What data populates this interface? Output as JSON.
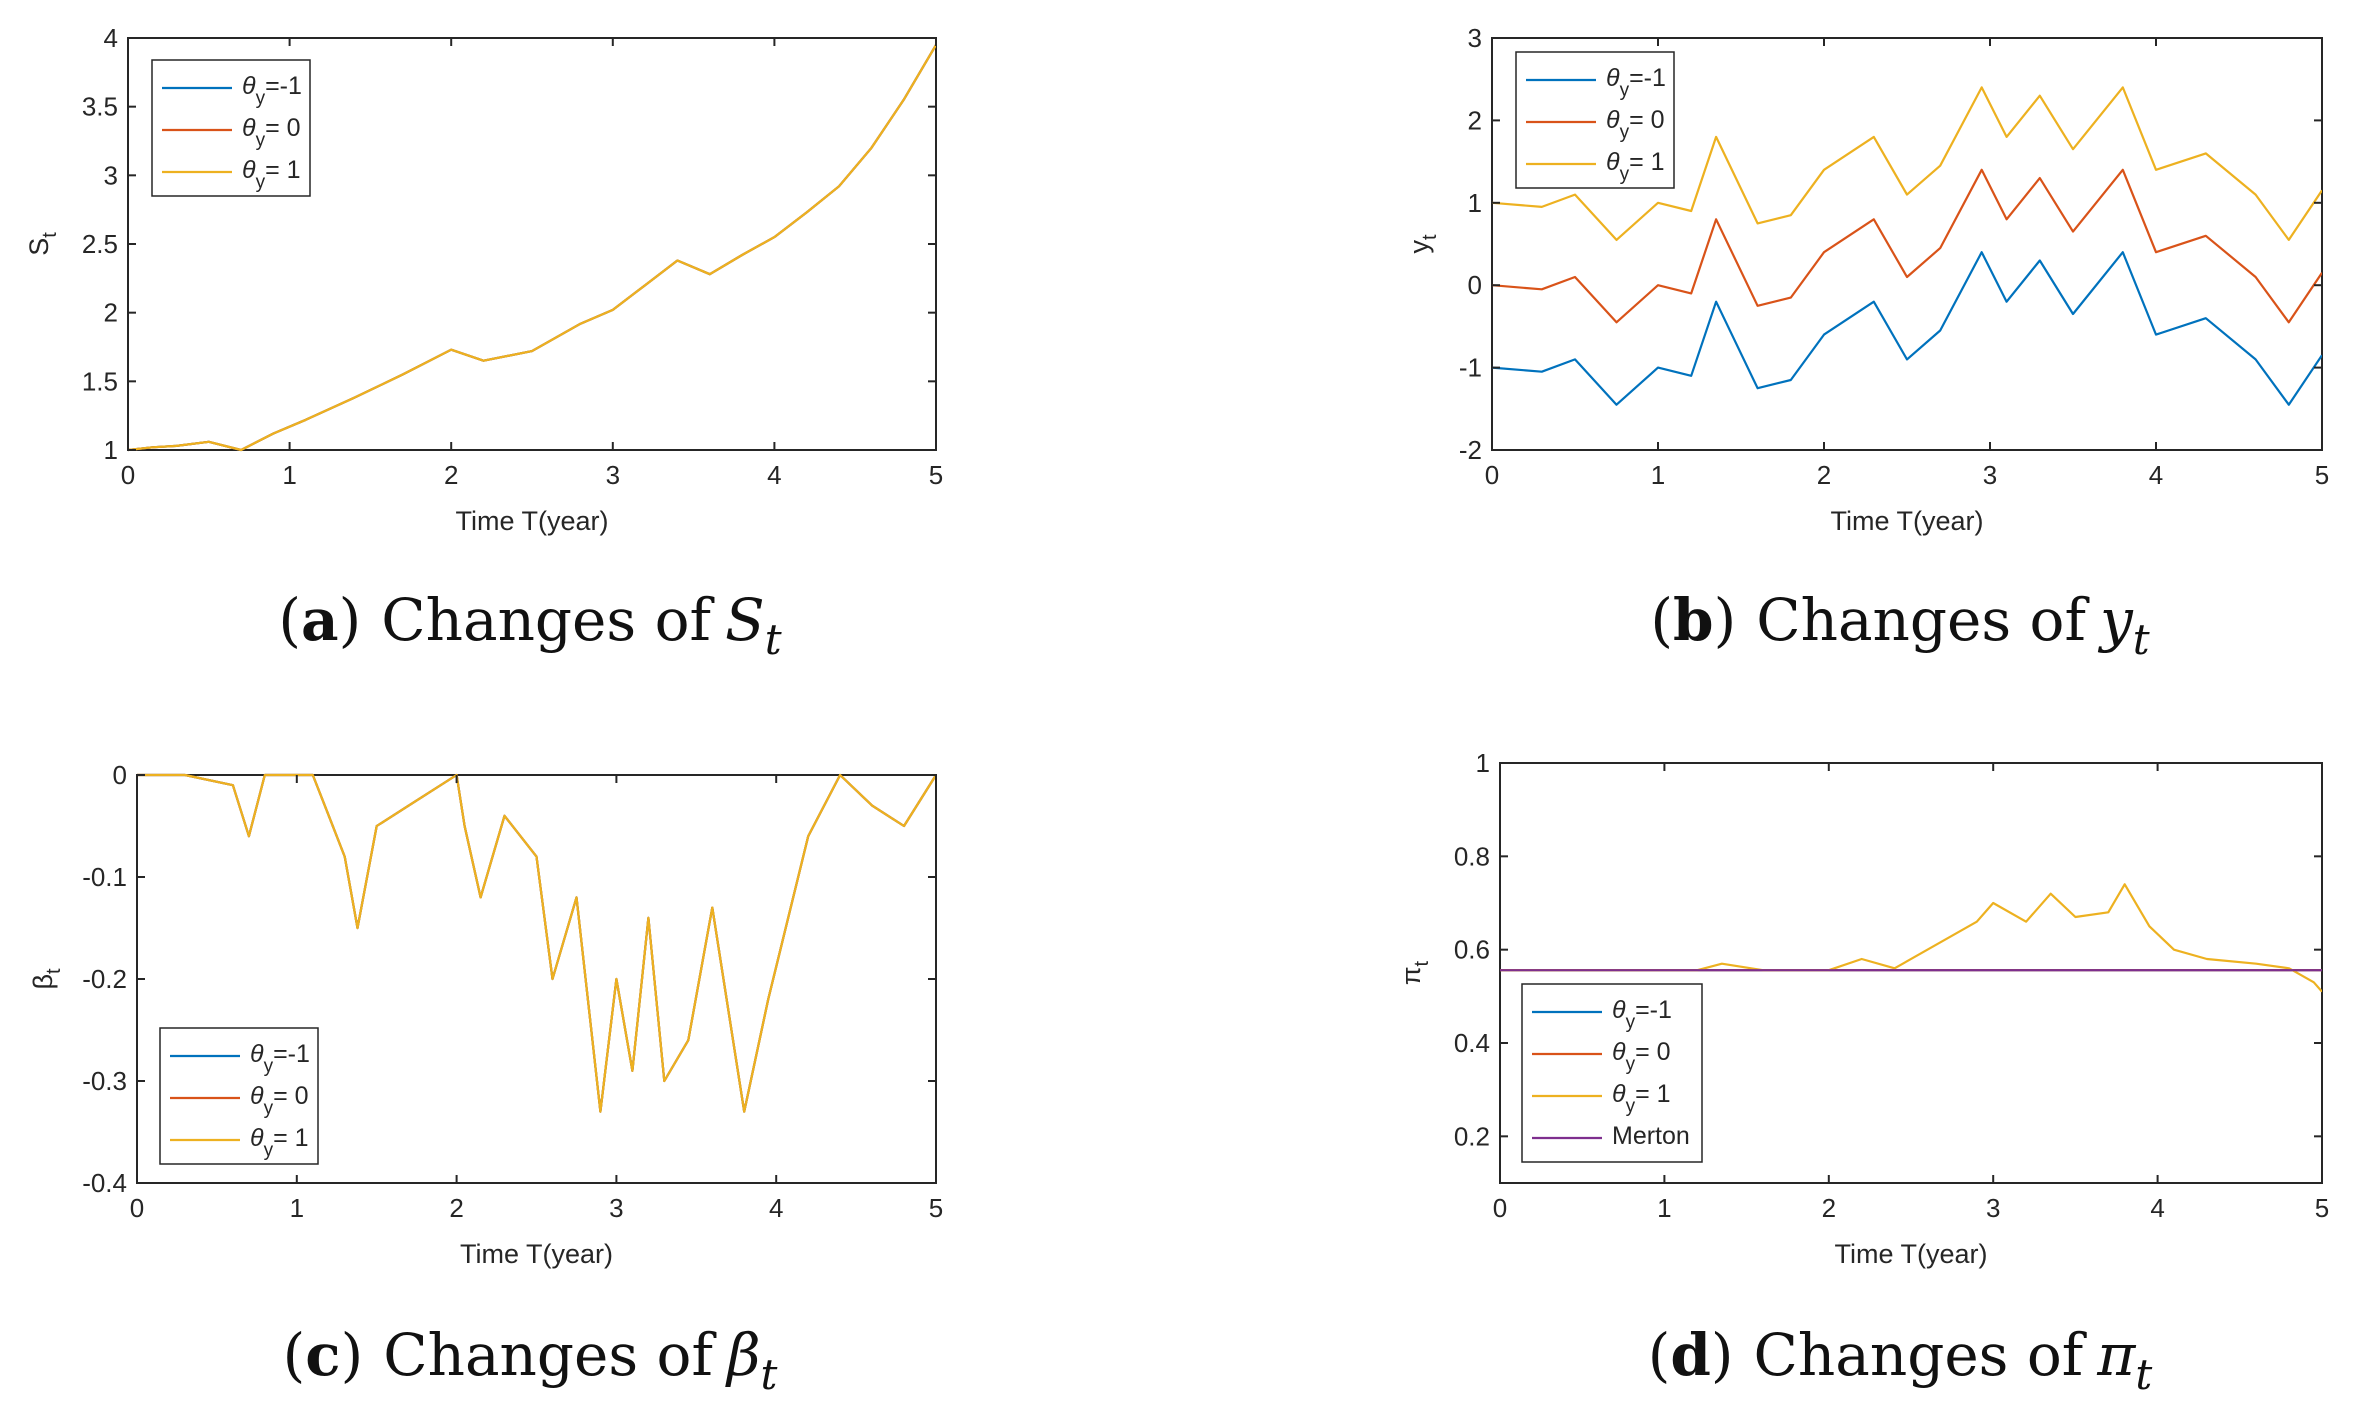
{
  "colors": {
    "blue": "#0072BD",
    "orange": "#D95319",
    "yellow": "#EDB120",
    "purple": "#7E2F8E",
    "axis": "#262626"
  },
  "chart_data": [
    {
      "id": "a",
      "type": "line",
      "caption": {
        "paren_open": "(",
        "letter": "a",
        "paren_close": ")",
        "text": "Changes of",
        "var": "S",
        "sub": "t"
      },
      "xlabel": "Time T(year)",
      "ylabel": {
        "main": "S",
        "sub": "t"
      },
      "xlim": [
        0,
        5
      ],
      "ylim": [
        1,
        4
      ],
      "xticks": [
        "0",
        "1",
        "2",
        "3",
        "4",
        "5"
      ],
      "yticks": [
        "1",
        "1.5",
        "2",
        "2.5",
        "3",
        "3.5",
        "4"
      ],
      "legend": [
        {
          "sym": "θ",
          "sub": "y",
          "val": "=-1",
          "color": "#0072BD"
        },
        {
          "sym": "θ",
          "sub": "y",
          "val": "= 0",
          "color": "#D95319"
        },
        {
          "sym": "θ",
          "sub": "y",
          "val": "= 1",
          "color": "#EDB120"
        }
      ],
      "series": [
        {
          "name": "θy=-1",
          "color": "#0072BD",
          "x": [
            0,
            0.15,
            0.3,
            0.5,
            0.7,
            0.9,
            1.1,
            1.4,
            1.7,
            2.0,
            2.2,
            2.5,
            2.8,
            3.0,
            3.2,
            3.4,
            3.6,
            3.8,
            4.0,
            4.2,
            4.4,
            4.6,
            4.8,
            5.0
          ],
          "y": [
            1.0,
            1.02,
            1.03,
            1.06,
            1.0,
            1.12,
            1.22,
            1.38,
            1.55,
            1.73,
            1.65,
            1.72,
            1.92,
            2.02,
            2.2,
            2.38,
            2.28,
            2.42,
            2.55,
            2.73,
            2.92,
            3.2,
            3.55,
            3.95
          ]
        },
        {
          "name": "θy=0",
          "color": "#D95319",
          "x": [
            0,
            0.15,
            0.3,
            0.5,
            0.7,
            0.9,
            1.1,
            1.4,
            1.7,
            2.0,
            2.2,
            2.5,
            2.8,
            3.0,
            3.2,
            3.4,
            3.6,
            3.8,
            4.0,
            4.2,
            4.4,
            4.6,
            4.8,
            5.0
          ],
          "y": [
            1.0,
            1.02,
            1.03,
            1.06,
            1.0,
            1.12,
            1.22,
            1.38,
            1.55,
            1.73,
            1.65,
            1.72,
            1.92,
            2.02,
            2.2,
            2.38,
            2.28,
            2.42,
            2.55,
            2.73,
            2.92,
            3.2,
            3.55,
            3.95
          ]
        },
        {
          "name": "θy=1",
          "color": "#EDB120",
          "x": [
            0,
            0.15,
            0.3,
            0.5,
            0.7,
            0.9,
            1.1,
            1.4,
            1.7,
            2.0,
            2.2,
            2.5,
            2.8,
            3.0,
            3.2,
            3.4,
            3.6,
            3.8,
            4.0,
            4.2,
            4.4,
            4.6,
            4.8,
            5.0
          ],
          "y": [
            1.0,
            1.02,
            1.03,
            1.06,
            1.0,
            1.12,
            1.22,
            1.38,
            1.55,
            1.73,
            1.65,
            1.72,
            1.92,
            2.02,
            2.2,
            2.38,
            2.28,
            2.42,
            2.55,
            2.73,
            2.92,
            3.2,
            3.55,
            3.95
          ]
        }
      ]
    },
    {
      "id": "b",
      "type": "line",
      "caption": {
        "paren_open": "(",
        "letter": "b",
        "paren_close": ")",
        "text": "Changes of",
        "var": "y",
        "sub": "t"
      },
      "xlabel": "Time T(year)",
      "ylabel": {
        "main": "y",
        "sub": "t"
      },
      "xlim": [
        0,
        5
      ],
      "ylim": [
        -2,
        3
      ],
      "xticks": [
        "0",
        "1",
        "2",
        "3",
        "4",
        "5"
      ],
      "yticks": [
        "-2",
        "-1",
        "0",
        "1",
        "2",
        "3"
      ],
      "legend": [
        {
          "sym": "θ",
          "sub": "y",
          "val": "=-1",
          "color": "#0072BD"
        },
        {
          "sym": "θ",
          "sub": "y",
          "val": "= 0",
          "color": "#D95319"
        },
        {
          "sym": "θ",
          "sub": "y",
          "val": "= 1",
          "color": "#EDB120"
        }
      ],
      "series": [
        {
          "name": "θy=-1",
          "color": "#0072BD",
          "x": [
            0,
            0.3,
            0.5,
            0.75,
            1.0,
            1.2,
            1.35,
            1.6,
            1.8,
            2.0,
            2.3,
            2.5,
            2.7,
            2.95,
            3.1,
            3.3,
            3.5,
            3.8,
            4.0,
            4.3,
            4.6,
            4.8,
            5.0
          ],
          "y": [
            -1.0,
            -1.05,
            -0.9,
            -1.45,
            -1.0,
            -1.1,
            -0.2,
            -1.25,
            -1.15,
            -0.6,
            -0.2,
            -0.9,
            -0.55,
            0.4,
            -0.2,
            0.3,
            -0.35,
            0.4,
            -0.6,
            -0.4,
            -0.9,
            -1.45,
            -0.85
          ]
        },
        {
          "name": "θy=0",
          "color": "#D95319",
          "x": [
            0,
            0.3,
            0.5,
            0.75,
            1.0,
            1.2,
            1.35,
            1.6,
            1.8,
            2.0,
            2.3,
            2.5,
            2.7,
            2.95,
            3.1,
            3.3,
            3.5,
            3.8,
            4.0,
            4.3,
            4.6,
            4.8,
            5.0
          ],
          "y": [
            0.0,
            -0.05,
            0.1,
            -0.45,
            0.0,
            -0.1,
            0.8,
            -0.25,
            -0.15,
            0.4,
            0.8,
            0.1,
            0.45,
            1.4,
            0.8,
            1.3,
            0.65,
            1.4,
            0.4,
            0.6,
            0.1,
            -0.45,
            0.15
          ]
        },
        {
          "name": "θy=1",
          "color": "#EDB120",
          "x": [
            0,
            0.3,
            0.5,
            0.75,
            1.0,
            1.2,
            1.35,
            1.6,
            1.8,
            2.0,
            2.3,
            2.5,
            2.7,
            2.95,
            3.1,
            3.3,
            3.5,
            3.8,
            4.0,
            4.3,
            4.6,
            4.8,
            5.0
          ],
          "y": [
            1.0,
            0.95,
            1.1,
            0.55,
            1.0,
            0.9,
            1.8,
            0.75,
            0.85,
            1.4,
            1.8,
            1.1,
            1.45,
            2.4,
            1.8,
            2.3,
            1.65,
            2.4,
            1.4,
            1.6,
            1.1,
            0.55,
            1.15
          ]
        }
      ]
    },
    {
      "id": "c",
      "type": "line",
      "caption": {
        "paren_open": "(",
        "letter": "c",
        "paren_close": ")",
        "text": "Changes of",
        "var": "β",
        "sub": "t"
      },
      "xlabel": "Time T(year)",
      "ylabel": {
        "main": "β",
        "sub": "t"
      },
      "xlim": [
        0,
        5
      ],
      "ylim": [
        -0.4,
        0
      ],
      "xticks": [
        "0",
        "1",
        "2",
        "3",
        "4",
        "5"
      ],
      "yticks": [
        "-0.4",
        "-0.3",
        "-0.2",
        "-0.1",
        "0"
      ],
      "legend": [
        {
          "sym": "θ",
          "sub": "y",
          "val": "=-1",
          "color": "#0072BD"
        },
        {
          "sym": "θ",
          "sub": "y",
          "val": "= 0",
          "color": "#D95319"
        },
        {
          "sym": "θ",
          "sub": "y",
          "val": "= 1",
          "color": "#EDB120"
        }
      ],
      "series": [
        {
          "name": "θy=-1",
          "color": "#0072BD",
          "x": [
            0,
            0.3,
            0.6,
            0.7,
            0.8,
            1.1,
            1.2,
            1.3,
            1.38,
            1.5,
            1.7,
            2.0,
            2.05,
            2.15,
            2.3,
            2.5,
            2.6,
            2.75,
            2.9,
            3.0,
            3.1,
            3.2,
            3.3,
            3.45,
            3.6,
            3.8,
            3.95,
            4.2,
            4.4,
            4.6,
            4.8,
            5.0
          ],
          "y": [
            0,
            0,
            -0.01,
            -0.06,
            0,
            0,
            -0.04,
            -0.08,
            -0.15,
            -0.05,
            -0.03,
            0,
            -0.05,
            -0.12,
            -0.04,
            -0.08,
            -0.2,
            -0.12,
            -0.33,
            -0.2,
            -0.29,
            -0.14,
            -0.3,
            -0.26,
            -0.13,
            -0.33,
            -0.22,
            -0.06,
            0,
            -0.03,
            -0.05,
            0
          ]
        },
        {
          "name": "θy=0",
          "color": "#D95319",
          "x": [
            0,
            0.3,
            0.6,
            0.7,
            0.8,
            1.1,
            1.2,
            1.3,
            1.38,
            1.5,
            1.7,
            2.0,
            2.05,
            2.15,
            2.3,
            2.5,
            2.6,
            2.75,
            2.9,
            3.0,
            3.1,
            3.2,
            3.3,
            3.45,
            3.6,
            3.8,
            3.95,
            4.2,
            4.4,
            4.6,
            4.8,
            5.0
          ],
          "y": [
            0,
            0,
            -0.01,
            -0.06,
            0,
            0,
            -0.04,
            -0.08,
            -0.15,
            -0.05,
            -0.03,
            0,
            -0.05,
            -0.12,
            -0.04,
            -0.08,
            -0.2,
            -0.12,
            -0.33,
            -0.2,
            -0.29,
            -0.14,
            -0.3,
            -0.26,
            -0.13,
            -0.33,
            -0.22,
            -0.06,
            0,
            -0.03,
            -0.05,
            0
          ]
        },
        {
          "name": "θy=1",
          "color": "#EDB120",
          "x": [
            0,
            0.3,
            0.6,
            0.7,
            0.8,
            1.1,
            1.2,
            1.3,
            1.38,
            1.5,
            1.7,
            2.0,
            2.05,
            2.15,
            2.3,
            2.5,
            2.6,
            2.75,
            2.9,
            3.0,
            3.1,
            3.2,
            3.3,
            3.45,
            3.6,
            3.8,
            3.95,
            4.2,
            4.4,
            4.6,
            4.8,
            5.0
          ],
          "y": [
            0,
            0,
            -0.01,
            -0.06,
            0,
            0,
            -0.04,
            -0.08,
            -0.15,
            -0.05,
            -0.03,
            0,
            -0.05,
            -0.12,
            -0.04,
            -0.08,
            -0.2,
            -0.12,
            -0.33,
            -0.2,
            -0.29,
            -0.14,
            -0.3,
            -0.26,
            -0.13,
            -0.33,
            -0.22,
            -0.06,
            0,
            -0.03,
            -0.05,
            0
          ]
        }
      ]
    },
    {
      "id": "d",
      "type": "line",
      "caption": {
        "paren_open": "(",
        "letter": "d",
        "paren_close": ")",
        "text": "Changes of",
        "var": "π",
        "sub": "t"
      },
      "xlabel": "Time T(year)",
      "ylabel": {
        "main": "π",
        "sub": "t"
      },
      "xlim": [
        0,
        5
      ],
      "ylim": [
        0.1,
        1
      ],
      "xticks": [
        "0",
        "1",
        "2",
        "3",
        "4",
        "5"
      ],
      "yticks": [
        "0.2",
        "0.4",
        "0.6",
        "0.8",
        "1"
      ],
      "legend": [
        {
          "sym": "θ",
          "sub": "y",
          "val": "=-1",
          "color": "#0072BD"
        },
        {
          "sym": "θ",
          "sub": "y",
          "val": "= 0",
          "color": "#D95319"
        },
        {
          "sym": "θ",
          "sub": "y",
          "val": "= 1",
          "color": "#EDB120"
        },
        {
          "sym": "",
          "sub": "",
          "val": "Merton",
          "color": "#7E2F8E"
        }
      ],
      "series": [
        {
          "name": "θy=-1",
          "color": "#0072BD",
          "x": [
            0,
            5
          ],
          "y": [
            0.556,
            0.556
          ]
        },
        {
          "name": "θy=0",
          "color": "#D95319",
          "x": [
            0,
            5
          ],
          "y": [
            0.556,
            0.556
          ]
        },
        {
          "name": "θy=1",
          "color": "#EDB120",
          "x": [
            0,
            1.2,
            1.35,
            1.6,
            2.0,
            2.2,
            2.4,
            2.6,
            2.9,
            3.0,
            3.2,
            3.35,
            3.5,
            3.7,
            3.8,
            3.95,
            4.1,
            4.3,
            4.6,
            4.8,
            4.95,
            5.0
          ],
          "y": [
            0.556,
            0.556,
            0.57,
            0.556,
            0.556,
            0.58,
            0.56,
            0.6,
            0.66,
            0.7,
            0.66,
            0.72,
            0.67,
            0.68,
            0.74,
            0.65,
            0.6,
            0.58,
            0.57,
            0.56,
            0.53,
            0.51
          ]
        },
        {
          "name": "Merton",
          "color": "#7E2F8E",
          "x": [
            0,
            5
          ],
          "y": [
            0.556,
            0.556
          ]
        }
      ]
    }
  ]
}
